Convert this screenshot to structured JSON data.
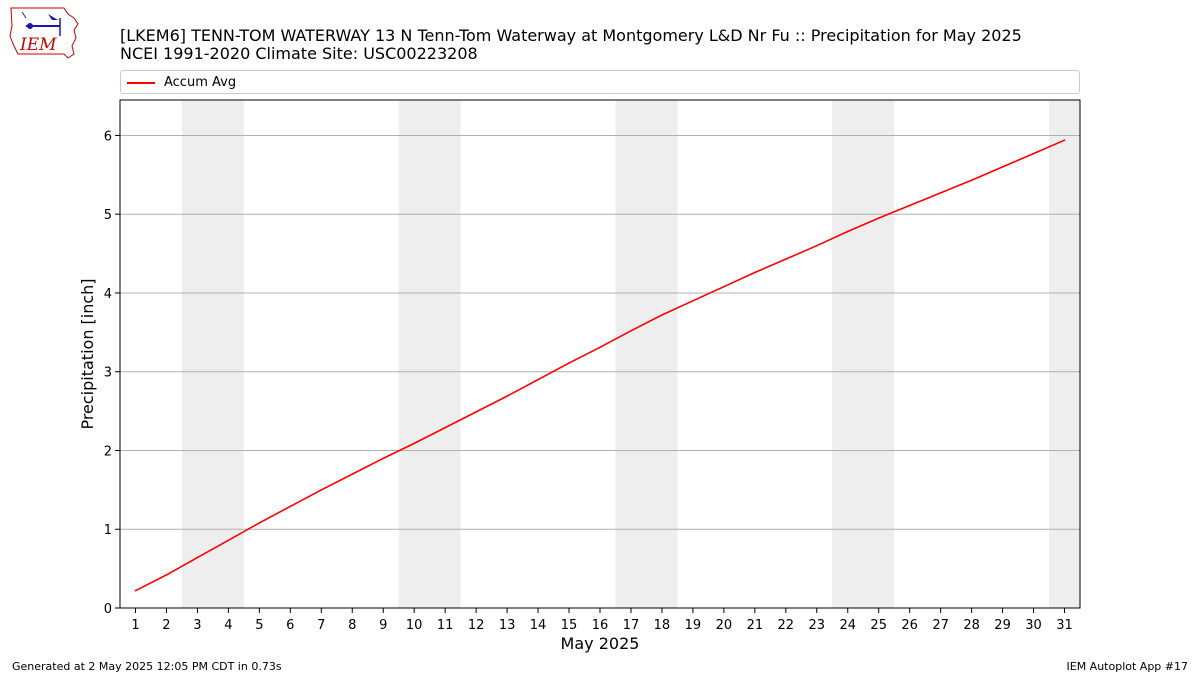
{
  "logo_text": "IEM",
  "title_line1": "[LKEM6] TENN-TOM WATERWAY 13 N Tenn-Tom Waterway at Montgomery L&D Nr Fu :: Precipitation for May 2025",
  "title_line2": "NCEI 1991-2020 Climate Site: USC00223208",
  "footer_left": "Generated at 2 May 2025 12:05 PM CDT in 0.73s",
  "footer_right": "IEM Autoplot App #17",
  "colors": {
    "accum_avg": "#ff0000",
    "weekend_band": "#eeeeee",
    "grid": "#b0b0b0",
    "logo": "#cc0000"
  },
  "chart_data": {
    "type": "line",
    "xlabel": "May 2025",
    "ylabel": "Precipitation [inch]",
    "xlim": [
      0.5,
      31.5
    ],
    "ylim": [
      0,
      6.45
    ],
    "x_ticks": [
      1,
      2,
      3,
      4,
      5,
      6,
      7,
      8,
      9,
      10,
      11,
      12,
      13,
      14,
      15,
      16,
      17,
      18,
      19,
      20,
      21,
      22,
      23,
      24,
      25,
      26,
      27,
      28,
      29,
      30,
      31
    ],
    "y_ticks": [
      0,
      1,
      2,
      3,
      4,
      5,
      6
    ],
    "grid": "horizontal",
    "legend_placement": "top",
    "weekend_days": [
      3,
      4,
      10,
      11,
      17,
      18,
      24,
      25,
      31
    ],
    "series": [
      {
        "name": "Accum Avg",
        "x": [
          1,
          2,
          3,
          4,
          5,
          6,
          7,
          8,
          9,
          10,
          11,
          12,
          13,
          14,
          15,
          16,
          17,
          18,
          19,
          20,
          21,
          22,
          23,
          24,
          25,
          26,
          27,
          28,
          29,
          30,
          31
        ],
        "values": [
          0.22,
          0.42,
          0.64,
          0.86,
          1.08,
          1.29,
          1.5,
          1.7,
          1.9,
          2.09,
          2.29,
          2.49,
          2.69,
          2.9,
          3.11,
          3.31,
          3.52,
          3.72,
          3.9,
          4.08,
          4.26,
          4.43,
          4.6,
          4.78,
          4.95,
          5.11,
          5.27,
          5.43,
          5.6,
          5.77,
          5.94
        ]
      }
    ]
  }
}
